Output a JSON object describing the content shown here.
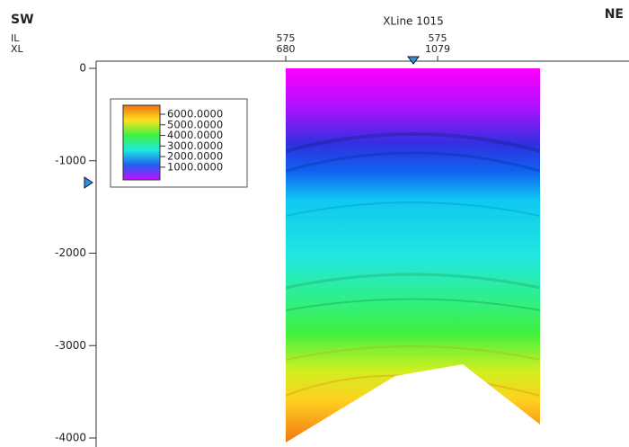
{
  "header": {
    "left": "SW",
    "right": "NE",
    "title": "XLine 1015",
    "row_labels": [
      "IL",
      "XL"
    ]
  },
  "traces": [
    {
      "il": 575,
      "xl": 680
    },
    {
      "il": 575,
      "xl": 1079
    }
  ],
  "depth_axis": {
    "lim": [
      0,
      -4000
    ],
    "ticks": [
      0,
      -1000,
      -2000,
      -3000,
      -4000
    ]
  },
  "colorbar": {
    "lim": [
      -200,
      6850
    ],
    "ticks": [
      {
        "value": 6000,
        "label": "6000.0000"
      },
      {
        "value": 5000,
        "label": "5000.0000"
      },
      {
        "value": 4000,
        "label": "4000.0000"
      },
      {
        "value": 3000,
        "label": "3000.0000"
      },
      {
        "value": 2000,
        "label": "2000.0000"
      },
      {
        "value": 1000,
        "label": "1000.0000"
      }
    ]
  }
}
